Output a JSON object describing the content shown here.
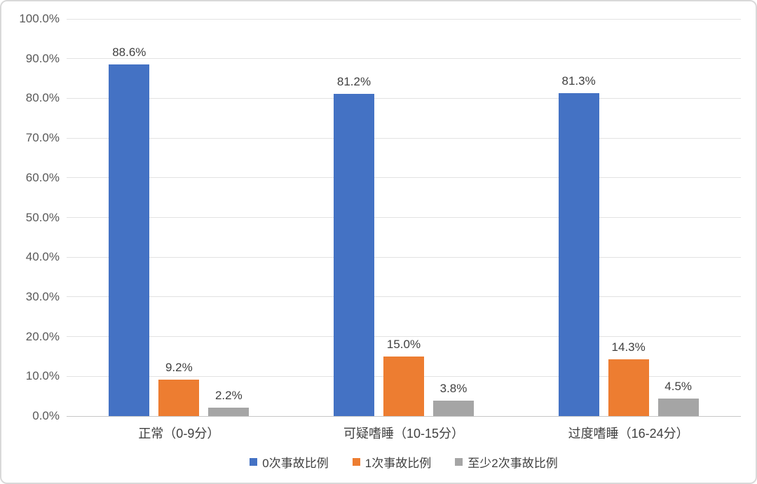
{
  "chart_data": {
    "type": "bar",
    "title": "",
    "xlabel": "",
    "ylabel": "",
    "categories": [
      "正常（0-9分）",
      "可疑嗜睡（10-15分）",
      "过度嗜睡（16-24分）"
    ],
    "series": [
      {
        "name": "0次事故比例",
        "color": "#4472C4",
        "values": [
          88.6,
          81.2,
          81.3
        ],
        "labels": [
          "88.6%",
          "81.2%",
          "81.3%"
        ]
      },
      {
        "name": "1次事故比例",
        "color": "#ED7D31",
        "values": [
          9.2,
          15.0,
          14.3
        ],
        "labels": [
          "9.2%",
          "15.0%",
          "14.3%"
        ]
      },
      {
        "name": "至少2次事故比例",
        "color": "#A5A5A5",
        "values": [
          2.2,
          3.8,
          4.5
        ],
        "labels": [
          "2.2%",
          "3.8%",
          "4.5%"
        ]
      }
    ],
    "y_axis": {
      "min": 0,
      "max": 100,
      "step": 10,
      "tick_labels": [
        "0.0%",
        "10.0%",
        "20.0%",
        "30.0%",
        "40.0%",
        "50.0%",
        "60.0%",
        "70.0%",
        "80.0%",
        "90.0%",
        "100.0%"
      ]
    },
    "grid": true,
    "legend_position": "bottom",
    "data_labels_shown": true
  },
  "style_colors": {
    "gridline": "#e2e2e2",
    "axis_baseline": "#c6c6c6",
    "tick_text": "#595959",
    "label_text": "#404040",
    "frame_border": "#d9d9d9"
  }
}
